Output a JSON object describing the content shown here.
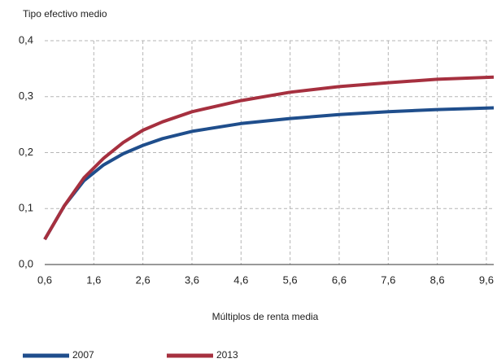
{
  "chart_data": {
    "type": "line",
    "title": "Tipo efectivo medio",
    "x_label": "Múltiplos de renta media",
    "x": [
      0.6,
      1.0,
      1.4,
      1.8,
      2.2,
      2.6,
      3.0,
      3.6,
      4.6,
      5.6,
      6.6,
      7.6,
      8.6,
      9.75
    ],
    "series": [
      {
        "name": "2007",
        "color": "#1f4e8c",
        "values": [
          0.045,
          0.105,
          0.15,
          0.178,
          0.198,
          0.213,
          0.225,
          0.238,
          0.252,
          0.261,
          0.268,
          0.273,
          0.277,
          0.28
        ]
      },
      {
        "name": "2013",
        "color": "#a6303f",
        "values": [
          0.045,
          0.105,
          0.155,
          0.19,
          0.218,
          0.24,
          0.255,
          0.273,
          0.293,
          0.308,
          0.318,
          0.325,
          0.331,
          0.335
        ]
      }
    ],
    "xlim": [
      0.6,
      9.75
    ],
    "ylim": [
      0,
      0.4
    ],
    "xticks": [
      {
        "value": 0.6,
        "label": "0,6"
      },
      {
        "value": 1.6,
        "label": "1,6"
      },
      {
        "value": 2.6,
        "label": "2,6"
      },
      {
        "value": 3.6,
        "label": "3,6"
      },
      {
        "value": 4.6,
        "label": "4,6"
      },
      {
        "value": 5.6,
        "label": "5,6"
      },
      {
        "value": 6.6,
        "label": "6,6"
      },
      {
        "value": 7.6,
        "label": "7,6"
      },
      {
        "value": 8.6,
        "label": "8,6"
      },
      {
        "value": 9.6,
        "label": "9,6"
      }
    ],
    "yticks": [
      {
        "value": 0,
        "label": "0,0"
      },
      {
        "value": 0.1,
        "label": "0,1"
      },
      {
        "value": 0.2,
        "label": "0,2"
      },
      {
        "value": 0.3,
        "label": "0,3"
      },
      {
        "value": 0.4,
        "label": "0,4"
      }
    ],
    "grid": true
  }
}
